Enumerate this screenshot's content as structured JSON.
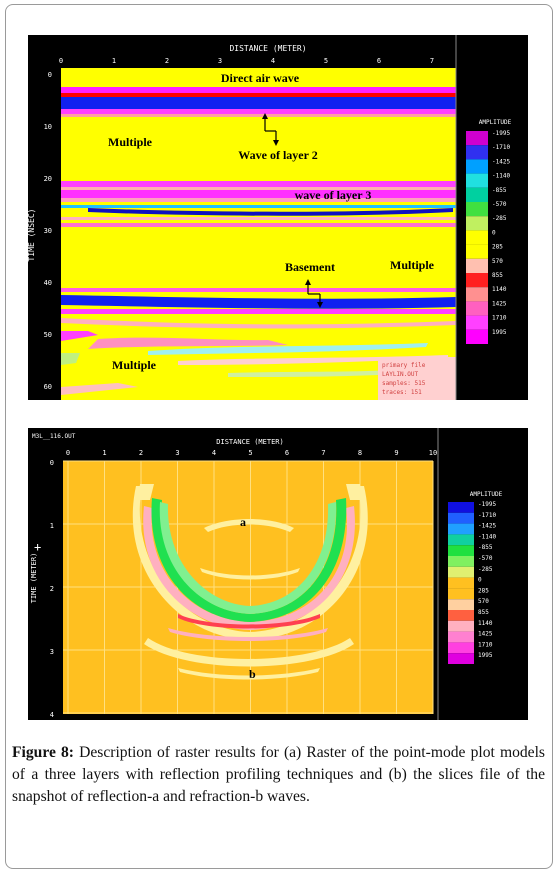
{
  "figure_a": {
    "x_axis_title": "DISTANCE (METER)",
    "y_axis_title": "TIME (NSEC)",
    "x_ticks": [
      "0",
      "1",
      "2",
      "3",
      "4",
      "5",
      "6",
      "7"
    ],
    "y_ticks": [
      "0",
      "10",
      "20",
      "30",
      "40",
      "50",
      "60"
    ],
    "legend_title": "AMPLITUDE",
    "legend_values": [
      "-1995",
      "-1710",
      "-1425",
      "-1140",
      "-855",
      "-570",
      "-285",
      "0",
      "285",
      "570",
      "855",
      "1140",
      "1425",
      "1710",
      "1995"
    ],
    "legend_colors": [
      "#d000d0",
      "#3030f0",
      "#00a0ff",
      "#20e0e0",
      "#00d0a0",
      "#40e040",
      "#c0f060",
      "#ffff00",
      "#ffff00",
      "#ffc0b0",
      "#ff2020",
      "#ff9090",
      "#ff60c0",
      "#ff40ff",
      "#ff00ff"
    ],
    "annotations": {
      "direct_air_wave": "Direct air wave",
      "multiple_1": "Multiple",
      "wave_layer2": "Wave of layer 2",
      "wave_layer3": "wave of layer 3",
      "basement": "Basement",
      "multiple_2": "Multiple",
      "multiple_3": "Multiple"
    },
    "info_box": [
      "primary file",
      "LAYLIN.OUT",
      "samples: 515",
      "traces: 151"
    ]
  },
  "figure_b": {
    "file_label": "M3L__116.OUT",
    "x_axis_title": "DISTANCE (METER)",
    "y_axis_title": "TIME (METER)",
    "x_ticks": [
      "0",
      "1",
      "2",
      "3",
      "4",
      "5",
      "6",
      "7",
      "8",
      "9",
      "10"
    ],
    "y_ticks": [
      "0",
      "1",
      "2",
      "3",
      "4"
    ],
    "legend_title": "AMPLITUDE",
    "legend_values": [
      "-1995",
      "-1710",
      "-1425",
      "-1140",
      "-855",
      "-570",
      "-285",
      "0",
      "285",
      "570",
      "855",
      "1140",
      "1425",
      "1710",
      "1995"
    ],
    "legend_colors": [
      "#1010e0",
      "#2060ff",
      "#20a0ff",
      "#10d0a0",
      "#20e040",
      "#80f060",
      "#e0f070",
      "#ffc020",
      "#ffc020",
      "#ffd0a0",
      "#ff6040",
      "#ffb0c0",
      "#ff80d0",
      "#ff40e0",
      "#e000e0"
    ],
    "label_a": "a",
    "label_b": "b"
  },
  "caption": {
    "label": "Figure 8:",
    "text": " Description of raster results for (a) Raster of the point-mode plot models of a three layers with reflection profiling techniques and (b) the slices file of the snapshot of reflection-a and refraction-b waves."
  },
  "colors": {
    "background_a": "#ffff00",
    "background_b": "#ffc020",
    "panel_bg": "#000000"
  }
}
